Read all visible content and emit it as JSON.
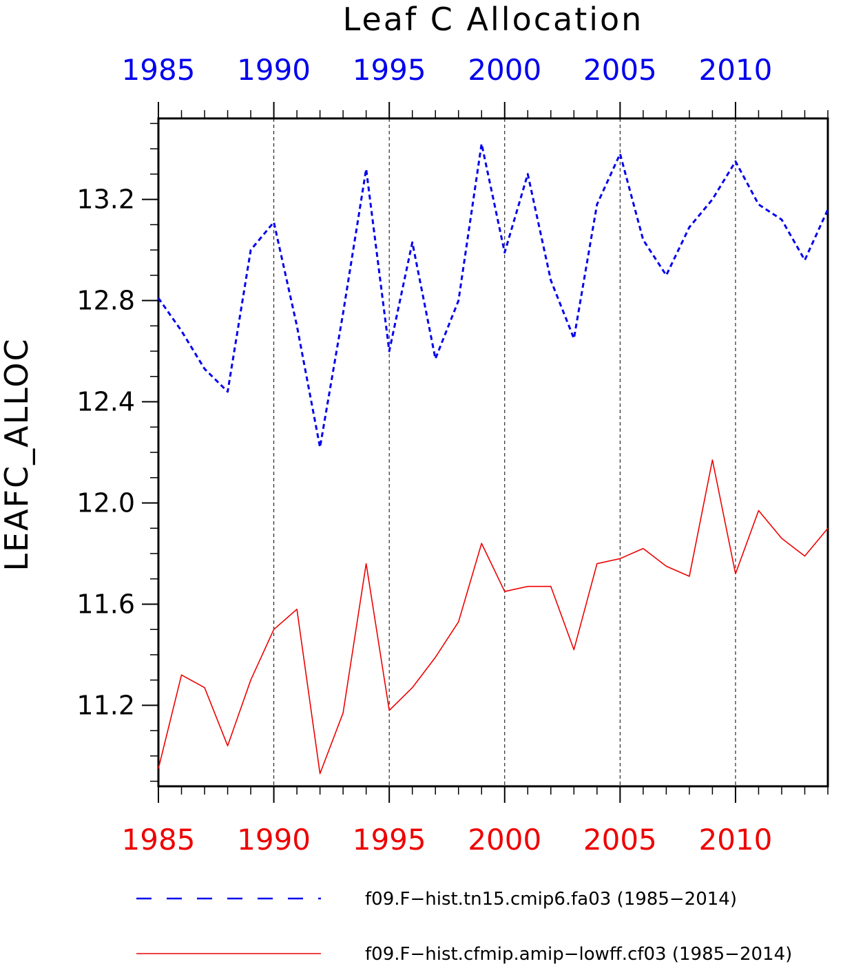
{
  "chart_data": {
    "type": "line",
    "title": "Leaf C Allocation",
    "ylabel": "LEAFC_ALLOC",
    "xlabel": "",
    "xlim": [
      1985,
      2014
    ],
    "ylim": [
      10.88,
      13.52
    ],
    "yticks": [
      11.2,
      11.6,
      12.0,
      12.4,
      12.8,
      13.2
    ],
    "ytick_labels": [
      "11.2",
      "11.6",
      "12.0",
      "12.4",
      "12.8",
      "13.2"
    ],
    "xticks": [
      1985,
      1990,
      1995,
      2000,
      2005,
      2010
    ],
    "xtick_labels": [
      "1985",
      "1990",
      "1995",
      "2000",
      "2005",
      "2010"
    ],
    "top_axis_color": "#0000ee",
    "bottom_axis_color": "#ee0000",
    "grid": "vertical dashed at major x ticks",
    "legend_position": "bottom",
    "x": [
      1985,
      1986,
      1987,
      1988,
      1989,
      1990,
      1991,
      1992,
      1993,
      1994,
      1995,
      1996,
      1997,
      1998,
      1999,
      2000,
      2001,
      2002,
      2003,
      2004,
      2005,
      2006,
      2007,
      2008,
      2009,
      2010,
      2011,
      2012,
      2013,
      2014
    ],
    "series": [
      {
        "name": "f09.F−hist.tn15.cmip6.fa03 (1985−2014)",
        "color": "#0000ee",
        "style": "dashed",
        "values": [
          12.81,
          12.68,
          12.53,
          12.44,
          13.0,
          13.11,
          12.7,
          12.22,
          12.75,
          13.32,
          12.6,
          13.03,
          12.57,
          12.8,
          13.42,
          12.99,
          13.3,
          12.88,
          12.65,
          13.18,
          13.38,
          13.04,
          12.9,
          13.09,
          13.2,
          13.35,
          13.18,
          13.12,
          12.96,
          13.16
        ]
      },
      {
        "name": "f09.F−hist.cfmip.amip−lowff.cf03 (1985−2014)",
        "color": "#ee0000",
        "style": "solid",
        "values": [
          10.95,
          11.32,
          11.27,
          11.04,
          11.3,
          11.5,
          11.58,
          10.93,
          11.17,
          11.76,
          11.18,
          11.27,
          11.39,
          11.53,
          11.84,
          11.65,
          11.67,
          11.67,
          11.42,
          11.76,
          11.78,
          11.82,
          11.75,
          11.71,
          12.17,
          11.72,
          11.97,
          11.86,
          11.79,
          11.9
        ]
      }
    ]
  }
}
